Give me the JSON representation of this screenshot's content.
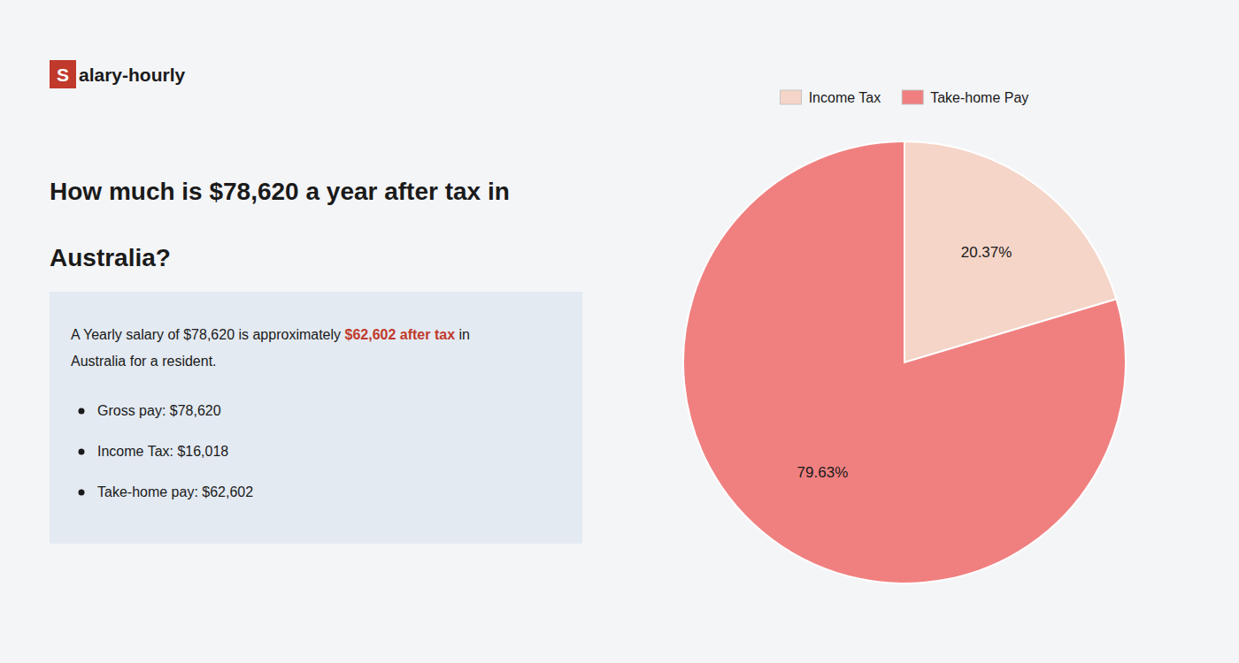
{
  "chart_data": {
    "type": "pie",
    "title": [
      "How much is $78,620 a year after tax in",
      "Australia?"
    ],
    "annotations": [
      "S",
      "alary-hourly",
      "A Yearly salary of $78,620 is approximately ",
      "$62,602 after tax",
      " in",
      "Australia for a resident.",
      "Gross pay: $78,620",
      "Income Tax: $16,018",
      "Take-home pay: $62,602"
    ],
    "categories": [
      "Income Tax",
      "Take-home Pay"
    ],
    "values": [
      20.37,
      79.63
    ],
    "value_labels": [
      "20.37%",
      "79.63%"
    ],
    "data_labels": true,
    "colors": [
      "#f5d5c8",
      "#f08080"
    ],
    "legend": "top"
  }
}
